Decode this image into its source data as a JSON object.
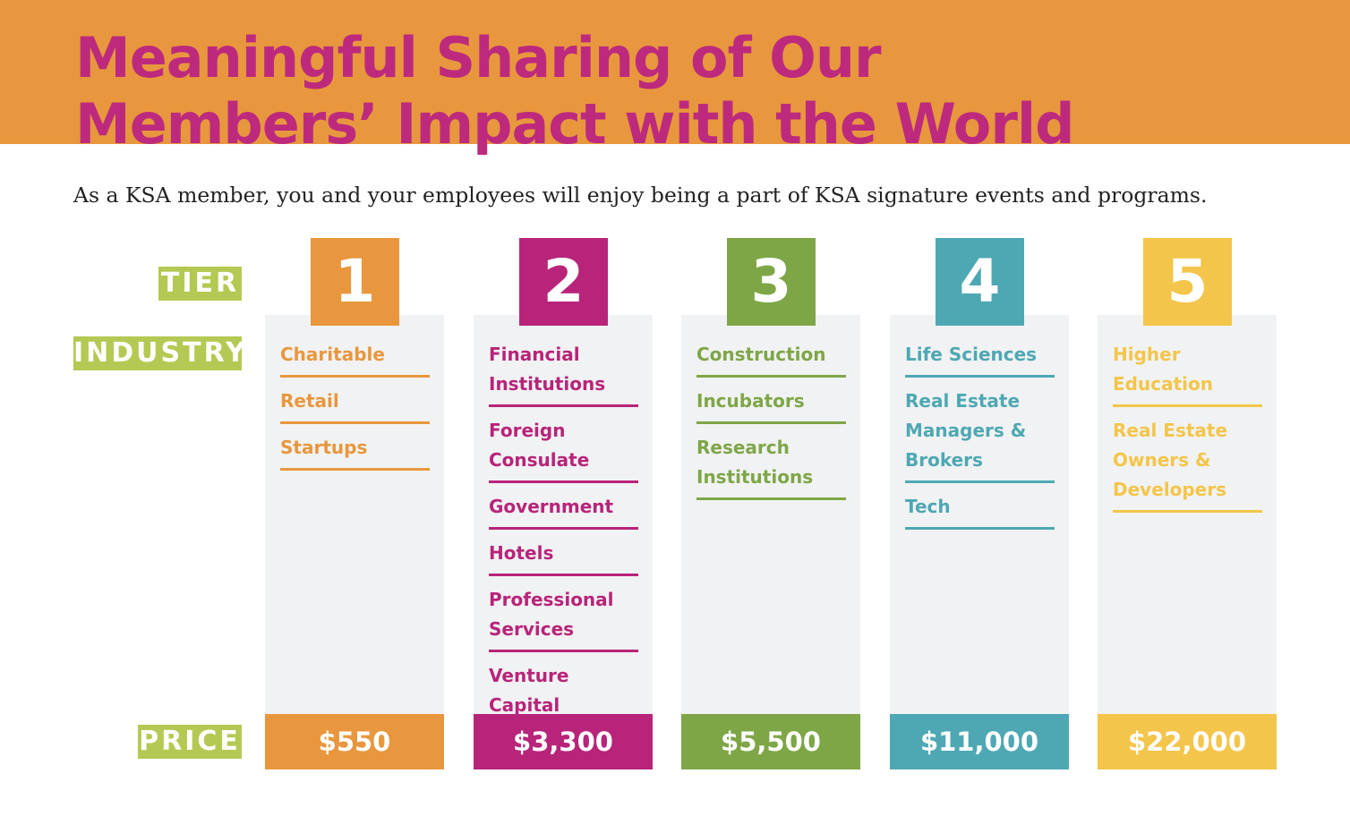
{
  "header": {
    "title_line1": "Meaningful Sharing of Our",
    "title_line2": "Members’ Impact with the World",
    "intro": "As a KSA member, you and your employees will enjoy being a part of KSA signature events and programs."
  },
  "labels": {
    "tier": "TIER",
    "industry": "INDUSTRY",
    "price": "PRICE"
  },
  "colors": {
    "banner": "#e8973e",
    "title": "#bd2a7d",
    "label_bg": "#b4c953",
    "panel": "#f1f2f3"
  },
  "tiers": [
    {
      "number": "1",
      "color": "#e8973e",
      "price": "$550",
      "industries": [
        "Charitable",
        "Retail",
        "Startups"
      ]
    },
    {
      "number": "2",
      "color": "#b8247a",
      "price": "$3,300",
      "industries": [
        "Financial Institutions",
        "Foreign Consulate",
        "Government",
        "Hotels",
        "Professional Services",
        "Venture Capital"
      ]
    },
    {
      "number": "3",
      "color": "#7ea647",
      "price": "$5,500",
      "industries": [
        "Construction",
        "Incubators",
        "Research Institutions"
      ]
    },
    {
      "number": "4",
      "color": "#4ea8b3",
      "price": "$11,000",
      "industries": [
        "Life Sciences",
        "Real Estate Managers & Brokers",
        "Tech"
      ]
    },
    {
      "number": "5",
      "color": "#f3c54a",
      "price": "$22,000",
      "industries": [
        "Higher Education",
        "Real Estate Owners & Developers"
      ]
    }
  ]
}
